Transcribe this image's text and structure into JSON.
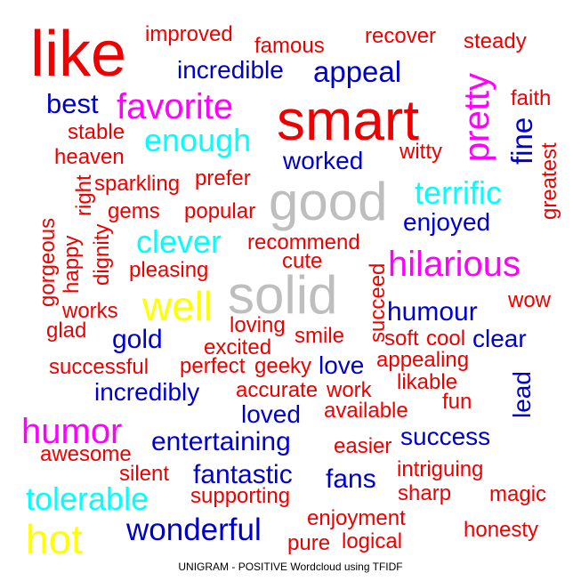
{
  "chart_data": {
    "type": "wordcloud",
    "title": "UNIGRAM - POSITIVE Wordcloud using TFIDF",
    "colors": {
      "red": "#ee0000",
      "blue": "#0000cc",
      "magenta": "#ff00ff",
      "cyan": "#00ffff",
      "gray": "#bebebe",
      "yellow": "#ffff00"
    },
    "words": [
      {
        "text": "like",
        "color": "red",
        "weight": 72,
        "vertical": false
      },
      {
        "text": "smart",
        "color": "red",
        "weight": 64,
        "vertical": false
      },
      {
        "text": "good",
        "color": "gray",
        "weight": 60,
        "vertical": false
      },
      {
        "text": "solid",
        "color": "gray",
        "weight": 60,
        "vertical": false
      },
      {
        "text": "hot",
        "color": "yellow",
        "weight": 46,
        "vertical": false
      },
      {
        "text": "well",
        "color": "yellow",
        "weight": 46,
        "vertical": false
      },
      {
        "text": "pretty",
        "color": "magenta",
        "weight": 40,
        "vertical": true
      },
      {
        "text": "hilarious",
        "color": "magenta",
        "weight": 40,
        "vertical": false
      },
      {
        "text": "favorite",
        "color": "magenta",
        "weight": 40,
        "vertical": false
      },
      {
        "text": "humor",
        "color": "magenta",
        "weight": 40,
        "vertical": false
      },
      {
        "text": "tolerable",
        "color": "cyan",
        "weight": 36,
        "vertical": false
      },
      {
        "text": "enough",
        "color": "cyan",
        "weight": 36,
        "vertical": false
      },
      {
        "text": "terrific",
        "color": "cyan",
        "weight": 36,
        "vertical": false
      },
      {
        "text": "clever",
        "color": "cyan",
        "weight": 36,
        "vertical": false
      },
      {
        "text": "wonderful",
        "color": "blue",
        "weight": 35,
        "vertical": false
      },
      {
        "text": "appeal",
        "color": "blue",
        "weight": 33,
        "vertical": false
      },
      {
        "text": "fine",
        "color": "blue",
        "weight": 33,
        "vertical": true
      },
      {
        "text": "best",
        "color": "blue",
        "weight": 31,
        "vertical": false
      },
      {
        "text": "humour",
        "color": "blue",
        "weight": 30,
        "vertical": false
      },
      {
        "text": "gold",
        "color": "blue",
        "weight": 30,
        "vertical": false
      },
      {
        "text": "fantastic",
        "color": "blue",
        "weight": 30,
        "vertical": false
      },
      {
        "text": "entertaining",
        "color": "blue",
        "weight": 30,
        "vertical": false
      },
      {
        "text": "fans",
        "color": "blue",
        "weight": 30,
        "vertical": false
      },
      {
        "text": "incredibly",
        "color": "blue",
        "weight": 28,
        "vertical": false
      },
      {
        "text": "incredible",
        "color": "blue",
        "weight": 28,
        "vertical": false
      },
      {
        "text": "worked",
        "color": "blue",
        "weight": 28,
        "vertical": false
      },
      {
        "text": "enjoyed",
        "color": "blue",
        "weight": 28,
        "vertical": false
      },
      {
        "text": "clear",
        "color": "blue",
        "weight": 28,
        "vertical": false
      },
      {
        "text": "love",
        "color": "blue",
        "weight": 28,
        "vertical": false
      },
      {
        "text": "loved",
        "color": "blue",
        "weight": 28,
        "vertical": false
      },
      {
        "text": "success",
        "color": "blue",
        "weight": 28,
        "vertical": false
      },
      {
        "text": "lead",
        "color": "blue",
        "weight": 28,
        "vertical": true
      },
      {
        "text": "improved",
        "color": "red",
        "weight": 24,
        "vertical": false
      },
      {
        "text": "famous",
        "color": "red",
        "weight": 24,
        "vertical": false
      },
      {
        "text": "recover",
        "color": "red",
        "weight": 24,
        "vertical": false
      },
      {
        "text": "steady",
        "color": "red",
        "weight": 24,
        "vertical": false
      },
      {
        "text": "faith",
        "color": "red",
        "weight": 24,
        "vertical": false
      },
      {
        "text": "stable",
        "color": "red",
        "weight": 24,
        "vertical": false
      },
      {
        "text": "heaven",
        "color": "red",
        "weight": 24,
        "vertical": false
      },
      {
        "text": "witty",
        "color": "red",
        "weight": 24,
        "vertical": false
      },
      {
        "text": "greatest",
        "color": "red",
        "weight": 24,
        "vertical": true
      },
      {
        "text": "sparkling",
        "color": "red",
        "weight": 24,
        "vertical": false
      },
      {
        "text": "prefer",
        "color": "red",
        "weight": 24,
        "vertical": false
      },
      {
        "text": "right",
        "color": "red",
        "weight": 24,
        "vertical": true
      },
      {
        "text": "gems",
        "color": "red",
        "weight": 24,
        "vertical": false
      },
      {
        "text": "popular",
        "color": "red",
        "weight": 24,
        "vertical": false
      },
      {
        "text": "gorgeous",
        "color": "red",
        "weight": 24,
        "vertical": true
      },
      {
        "text": "happy",
        "color": "red",
        "weight": 24,
        "vertical": true
      },
      {
        "text": "dignity",
        "color": "red",
        "weight": 24,
        "vertical": true
      },
      {
        "text": "recommend",
        "color": "red",
        "weight": 24,
        "vertical": false
      },
      {
        "text": "cute",
        "color": "red",
        "weight": 24,
        "vertical": false
      },
      {
        "text": "pleasing",
        "color": "red",
        "weight": 24,
        "vertical": false
      },
      {
        "text": "succeed",
        "color": "red",
        "weight": 24,
        "vertical": true
      },
      {
        "text": "wow",
        "color": "red",
        "weight": 24,
        "vertical": false
      },
      {
        "text": "works",
        "color": "red",
        "weight": 24,
        "vertical": false
      },
      {
        "text": "glad",
        "color": "red",
        "weight": 24,
        "vertical": false
      },
      {
        "text": "loving",
        "color": "red",
        "weight": 24,
        "vertical": false
      },
      {
        "text": "excited",
        "color": "red",
        "weight": 24,
        "vertical": false
      },
      {
        "text": "smile",
        "color": "red",
        "weight": 24,
        "vertical": false
      },
      {
        "text": "soft",
        "color": "red",
        "weight": 24,
        "vertical": false
      },
      {
        "text": "cool",
        "color": "red",
        "weight": 24,
        "vertical": false
      },
      {
        "text": "successful",
        "color": "red",
        "weight": 24,
        "vertical": false
      },
      {
        "text": "perfect",
        "color": "red",
        "weight": 24,
        "vertical": false
      },
      {
        "text": "geeky",
        "color": "red",
        "weight": 24,
        "vertical": false
      },
      {
        "text": "appealing",
        "color": "red",
        "weight": 24,
        "vertical": false
      },
      {
        "text": "accurate",
        "color": "red",
        "weight": 24,
        "vertical": false
      },
      {
        "text": "work",
        "color": "red",
        "weight": 24,
        "vertical": false
      },
      {
        "text": "likable",
        "color": "red",
        "weight": 24,
        "vertical": false
      },
      {
        "text": "available",
        "color": "red",
        "weight": 24,
        "vertical": false
      },
      {
        "text": "fun",
        "color": "red",
        "weight": 24,
        "vertical": false
      },
      {
        "text": "awesome",
        "color": "red",
        "weight": 24,
        "vertical": false
      },
      {
        "text": "easier",
        "color": "red",
        "weight": 24,
        "vertical": false
      },
      {
        "text": "silent",
        "color": "red",
        "weight": 24,
        "vertical": false
      },
      {
        "text": "intriguing",
        "color": "red",
        "weight": 24,
        "vertical": false
      },
      {
        "text": "supporting",
        "color": "red",
        "weight": 24,
        "vertical": false
      },
      {
        "text": "sharp",
        "color": "red",
        "weight": 24,
        "vertical": false
      },
      {
        "text": "magic",
        "color": "red",
        "weight": 24,
        "vertical": false
      },
      {
        "text": "enjoyment",
        "color": "red",
        "weight": 24,
        "vertical": false
      },
      {
        "text": "honesty",
        "color": "red",
        "weight": 24,
        "vertical": false
      },
      {
        "text": "pure",
        "color": "red",
        "weight": 24,
        "vertical": false
      },
      {
        "text": "logical",
        "color": "red",
        "weight": 24,
        "vertical": false
      }
    ]
  }
}
